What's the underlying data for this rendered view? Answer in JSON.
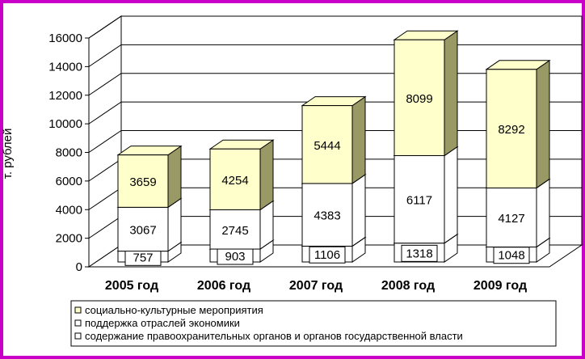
{
  "chart_data": {
    "type": "bar",
    "stacked": true,
    "three_d": true,
    "ylabel": "т. рублей",
    "ylim": [
      0,
      16000
    ],
    "yticks": [
      0,
      2000,
      4000,
      6000,
      8000,
      10000,
      12000,
      14000,
      16000
    ],
    "categories": [
      "2005 год",
      "2006 год",
      "2007 год",
      "2008 год",
      "2009 год"
    ],
    "series": [
      {
        "name": "содержание правоохранительных органов и органов государственной власти",
        "values": [
          757,
          903,
          1106,
          1318,
          1048
        ],
        "color": "#ffffff",
        "label_bordered": true
      },
      {
        "name": "поддержка отраслей экономики",
        "values": [
          3067,
          2745,
          4383,
          6117,
          4127
        ],
        "color": "#ffffff",
        "label_bordered": false
      },
      {
        "name": "социально-культурные мероприятия",
        "values": [
          3659,
          4254,
          5444,
          8099,
          8292
        ],
        "color": "#ffffcc",
        "label_bordered": false
      }
    ],
    "legend_order": [
      2,
      1,
      0
    ],
    "legend_position": "bottom",
    "grid": true,
    "frame_color": "#c800c8"
  }
}
